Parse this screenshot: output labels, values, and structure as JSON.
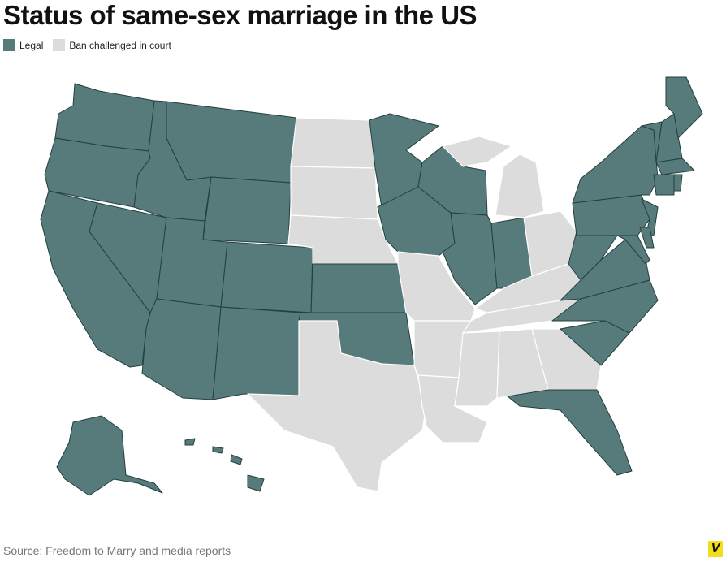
{
  "header": {
    "title": "Status of same-sex marriage in the US"
  },
  "legend": {
    "items": [
      {
        "label": "Legal",
        "color": "#577a7a"
      },
      {
        "label": "Ban challenged in court",
        "color": "#dcdcdc"
      }
    ]
  },
  "footer": {
    "source": "Source: Freedom to Marry and media reports",
    "logo": "V"
  }
}
